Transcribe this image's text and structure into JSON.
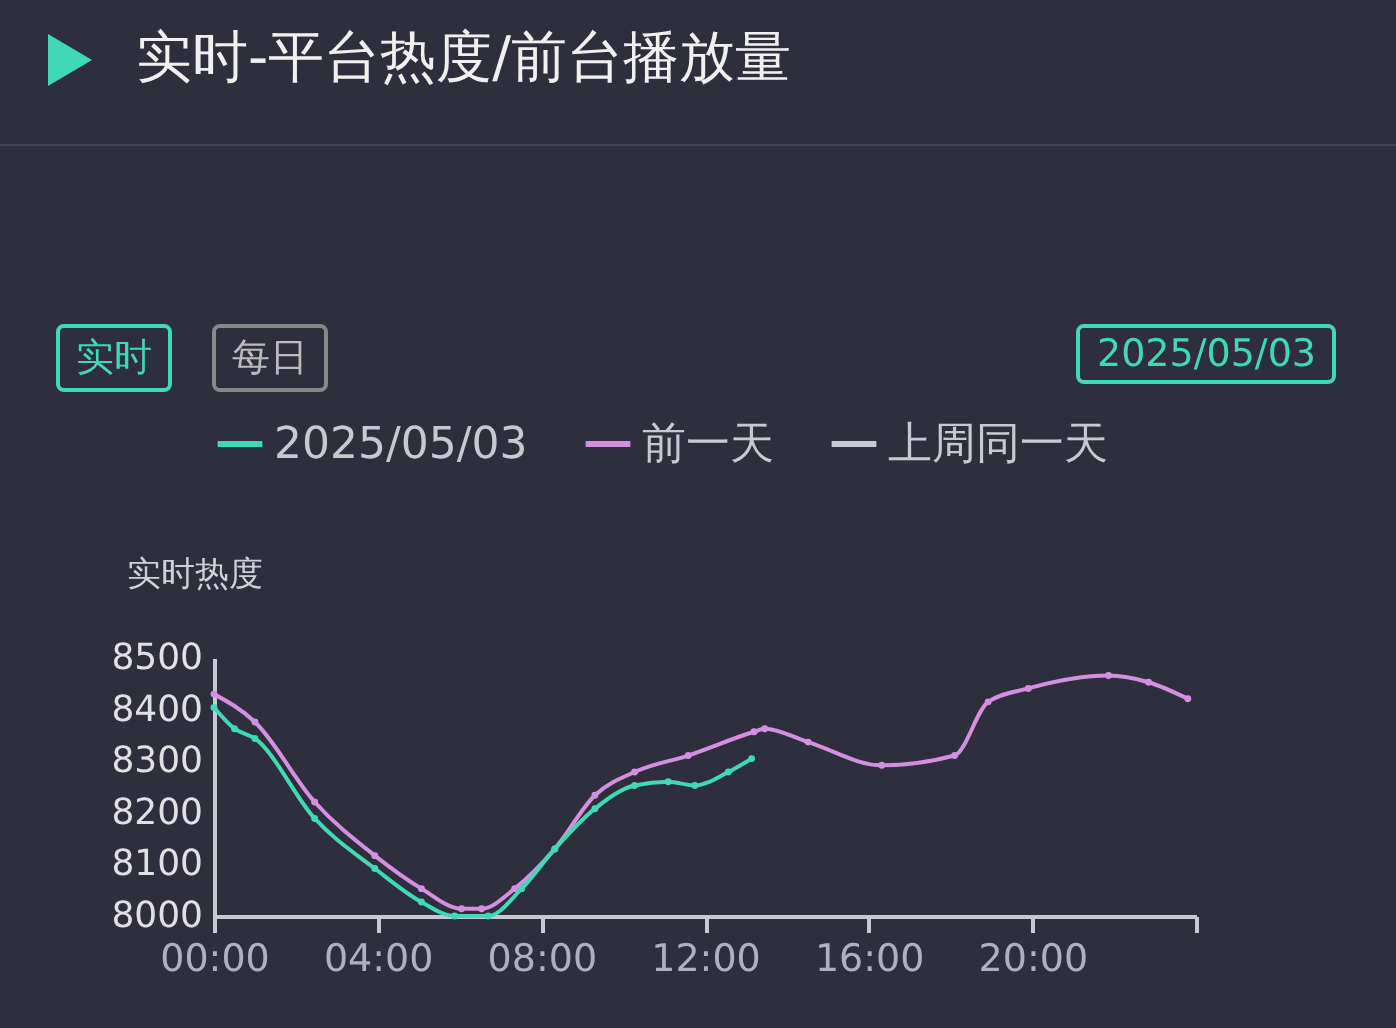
{
  "chart_data": {
    "type": "line",
    "title": "实时-平台热度/前台播放量",
    "annotations": [
      "实时",
      "每日",
      "2025/05/03"
    ],
    "ylabel": "实时热度",
    "xlim": [
      0,
      24
    ],
    "ylim": [
      8000,
      8500
    ],
    "xticks": [
      {
        "value": 0,
        "label": "00:00"
      },
      {
        "value": 4,
        "label": "04:00"
      },
      {
        "value": 8,
        "label": "08:00"
      },
      {
        "value": 12,
        "label": "12:00"
      },
      {
        "value": 16,
        "label": "16:00"
      },
      {
        "value": 20,
        "label": "20:00"
      },
      {
        "value": 24,
        "label": null
      }
    ],
    "yticks": [
      8000,
      8100,
      8200,
      8300,
      8400,
      8500
    ],
    "grid": false,
    "legend": "top",
    "marker": "circle",
    "line_style": "solid",
    "series": [
      {
        "name": "2025/05/03",
        "color": "#3fd9b5",
        "x": [
          0,
          0.5,
          1.0,
          2.46,
          3.93,
          5.07,
          5.88,
          6.7,
          7.52,
          8.33,
          9.31,
          10.28,
          11.1,
          11.75,
          12.57,
          13.14
        ],
        "values": [
          8404,
          8363,
          8344,
          8189,
          8092,
          8027,
          8000,
          8000,
          8053,
          8130,
          8208,
          8253,
          8260,
          8253,
          8279,
          8305
        ]
      },
      {
        "name": "前一天",
        "color": "#d58fe0",
        "x": [
          0,
          1.0,
          2.46,
          3.93,
          5.07,
          6.05,
          6.54,
          7.35,
          8.33,
          9.31,
          10.28,
          11.59,
          13.2,
          13.46,
          14.52,
          16.32,
          18.1,
          18.92,
          19.9,
          21.86,
          22.84,
          23.8
        ],
        "values": [
          8430,
          8376,
          8221,
          8117,
          8053,
          8014,
          8014,
          8053,
          8130,
          8234,
          8279,
          8311,
          8357,
          8363,
          8337,
          8292,
          8311,
          8415,
          8441,
          8466,
          8453,
          8421
        ]
      },
      {
        "name": "上周同一天",
        "color": "#c8c8d0"
      }
    ]
  }
}
